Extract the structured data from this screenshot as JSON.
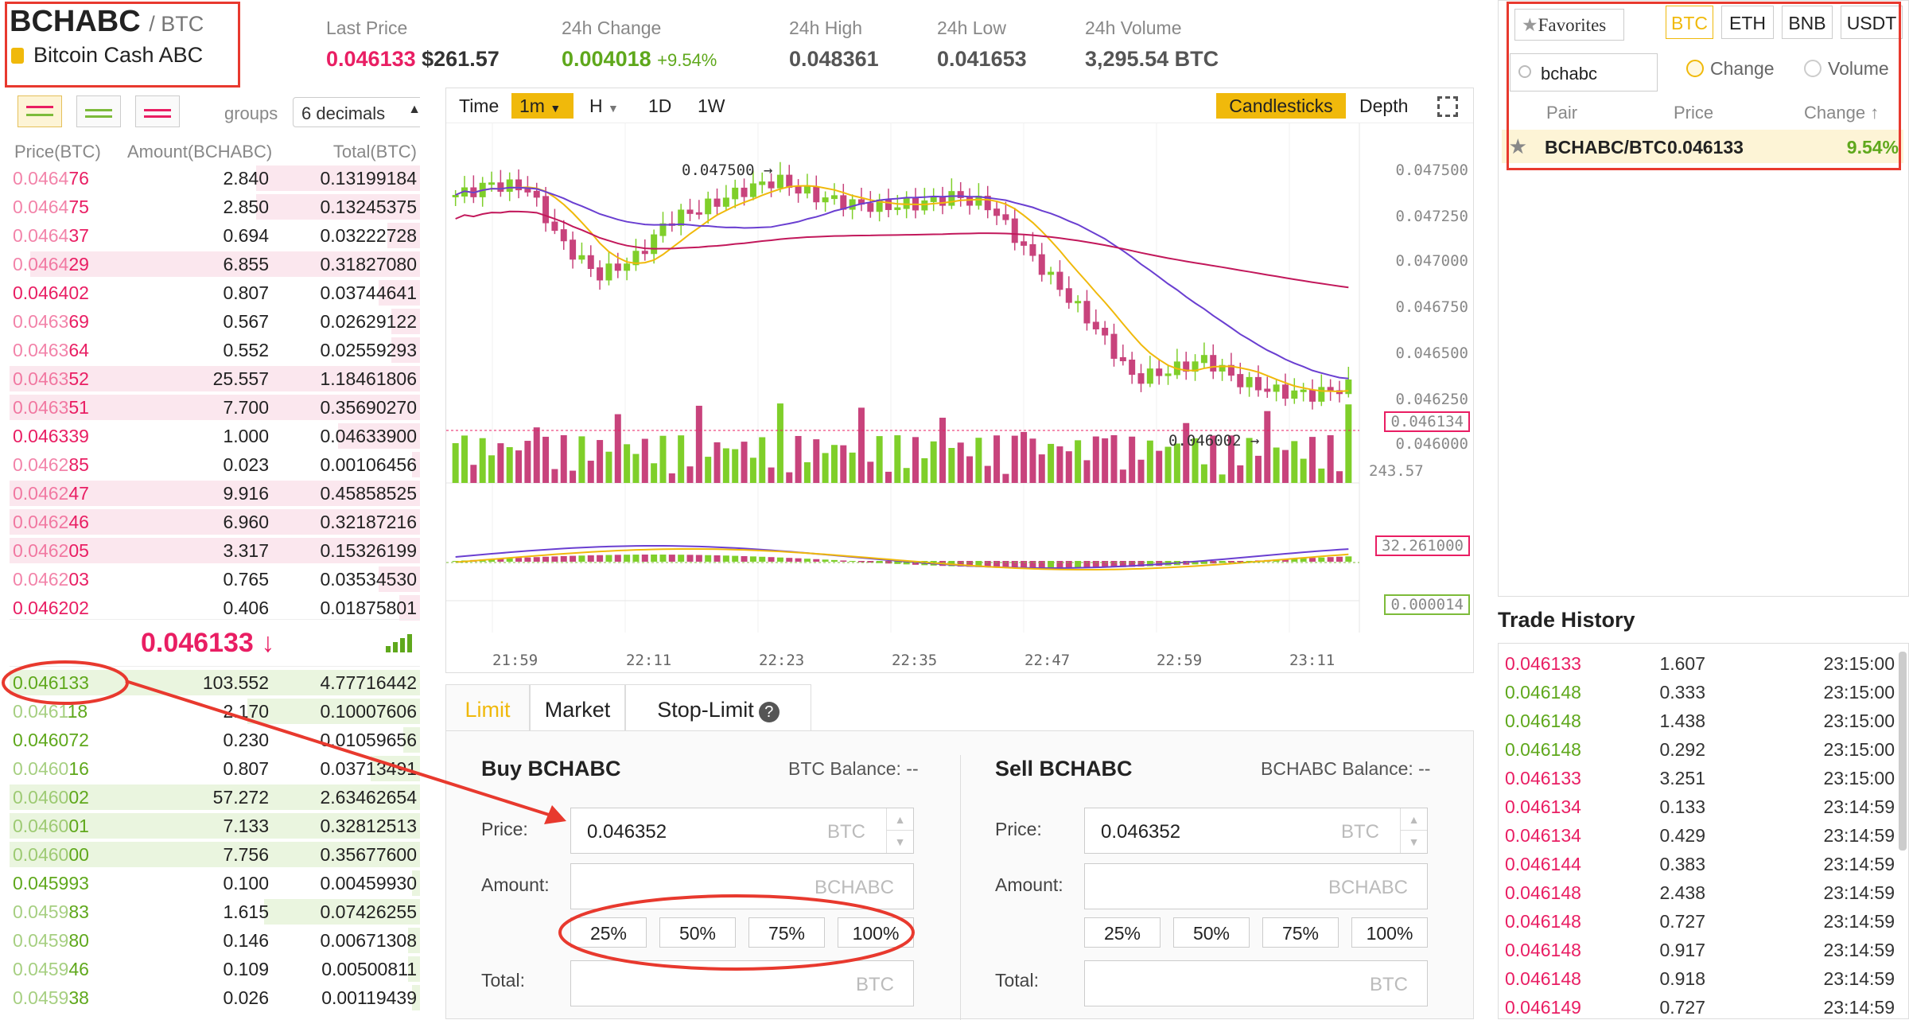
{
  "header": {
    "symbol": "BCHABC",
    "quote": "/ BTC",
    "name": "Bitcoin Cash ABC",
    "stats": [
      {
        "label": "Last Price",
        "value": "0.046133",
        "extra": "$261.57"
      },
      {
        "label": "24h Change",
        "value": "0.004018",
        "extra": "+9.54%"
      },
      {
        "label": "24h High",
        "value": "0.048361"
      },
      {
        "label": "24h Low",
        "value": "0.041653"
      },
      {
        "label": "24h Volume",
        "value": "3,295.54 BTC"
      }
    ]
  },
  "orderbook": {
    "groups_label": "groups",
    "groups_value": "6 decimals",
    "columns": [
      "Price(BTC)",
      "Amount(BCHABC)",
      "Total(BTC)"
    ],
    "asks": [
      {
        "p1": "0.0464",
        "p2": "76",
        "amount": "2.840",
        "total": "0.13199184",
        "depth": 0.4
      },
      {
        "p1": "0.0464",
        "p2": "75",
        "amount": "2.850",
        "total": "0.13245375",
        "depth": 0.4
      },
      {
        "p1": "0.0464",
        "p2": "37",
        "amount": "0.694",
        "total": "0.03222728",
        "depth": 0.08
      },
      {
        "p1": "0.0464",
        "p2": "29",
        "amount": "6.855",
        "total": "0.31827080",
        "depth": 0.95
      },
      {
        "p1": "0.046402",
        "p2": "",
        "amount": "0.807",
        "total": "0.03744641",
        "depth": 0.1
      },
      {
        "p1": "0.0463",
        "p2": "69",
        "amount": "0.567",
        "total": "0.02629122",
        "depth": 0.07
      },
      {
        "p1": "0.0463",
        "p2": "64",
        "amount": "0.552",
        "total": "0.02559293",
        "depth": 0.07
      },
      {
        "p1": "0.0463",
        "p2": "52",
        "amount": "25.557",
        "total": "1.18461806",
        "depth": 1.0
      },
      {
        "p1": "0.0463",
        "p2": "51",
        "amount": "7.700",
        "total": "0.35690270",
        "depth": 1.0
      },
      {
        "p1": "0.046339",
        "p2": "",
        "amount": "1.000",
        "total": "0.04633900",
        "depth": 0.2
      },
      {
        "p1": "0.0462",
        "p2": "85",
        "amount": "0.023",
        "total": "0.00106456",
        "depth": 0.02
      },
      {
        "p1": "0.0462",
        "p2": "47",
        "amount": "9.916",
        "total": "0.45858525",
        "depth": 1.0
      },
      {
        "p1": "0.0462",
        "p2": "46",
        "amount": "6.960",
        "total": "0.32187216",
        "depth": 1.0
      },
      {
        "p1": "0.0462",
        "p2": "05",
        "amount": "3.317",
        "total": "0.15326199",
        "depth": 1.0
      },
      {
        "p1": "0.0462",
        "p2": "03",
        "amount": "0.765",
        "total": "0.03534530",
        "depth": 0.1
      },
      {
        "p1": "0.046202",
        "p2": "",
        "amount": "0.406",
        "total": "0.01875801",
        "depth": 0.05
      }
    ],
    "mid_price": "0.046133 ↓",
    "bids": [
      {
        "p1": "0.046133",
        "p2": "",
        "amount": "103.552",
        "total": "4.77716442",
        "depth": 1.0
      },
      {
        "p1": "0.0461",
        "p2": "18",
        "amount": "2.170",
        "total": "0.10007606",
        "depth": 0.42
      },
      {
        "p1": "0.046072",
        "p2": "",
        "amount": "0.230",
        "total": "0.01059656",
        "depth": 0.04
      },
      {
        "p1": "0.0460",
        "p2": "16",
        "amount": "0.807",
        "total": "0.03713491",
        "depth": 0.12
      },
      {
        "p1": "0.0460",
        "p2": "02",
        "amount": "57.272",
        "total": "2.63462654",
        "depth": 1.0
      },
      {
        "p1": "0.0460",
        "p2": "01",
        "amount": "7.133",
        "total": "0.32812513",
        "depth": 1.0
      },
      {
        "p1": "0.0460",
        "p2": "00",
        "amount": "7.756",
        "total": "0.35677600",
        "depth": 1.0
      },
      {
        "p1": "0.045993",
        "p2": "",
        "amount": "0.100",
        "total": "0.00459930",
        "depth": 0.02
      },
      {
        "p1": "0.0459",
        "p2": "83",
        "amount": "1.615",
        "total": "0.07426255",
        "depth": 0.38
      },
      {
        "p1": "0.0459",
        "p2": "80",
        "amount": "0.146",
        "total": "0.00671308",
        "depth": 0.03
      },
      {
        "p1": "0.0459",
        "p2": "46",
        "amount": "0.109",
        "total": "0.00500811",
        "depth": 0.03
      },
      {
        "p1": "0.0459",
        "p2": "38",
        "amount": "0.026",
        "total": "0.00119439",
        "depth": 0.02
      }
    ]
  },
  "chart": {
    "toolbar": [
      "Time",
      "1m",
      "H",
      "1D",
      "1W"
    ],
    "views": [
      "Candlesticks",
      "Depth"
    ],
    "y_labels": [
      "0.047500",
      "0.047250",
      "0.047000",
      "0.046750",
      "0.046500",
      "0.046250",
      "0.046134",
      "0.046000"
    ],
    "volume_labels": [
      "243.57",
      "32.261000"
    ],
    "macd_label": "0.000014",
    "x_labels": [
      "21:59",
      "22:11",
      "22:23",
      "22:35",
      "22:47",
      "22:59",
      "23:11"
    ],
    "high_marker": "0.047500",
    "low_marker": "0.046002"
  },
  "trade": {
    "tabs": [
      "Limit",
      "Market",
      "Stop-Limit"
    ],
    "help": "?",
    "buy": {
      "title": "Buy BCHABC",
      "balance": "BTC Balance: --",
      "price": "0.046352",
      "price_unit": "BTC",
      "amount_unit": "BCHABC",
      "total_unit": "BTC"
    },
    "sell": {
      "title": "Sell BCHABC",
      "balance": "BCHABC Balance: --",
      "price": "0.046352",
      "price_unit": "BTC",
      "amount_unit": "BCHABC",
      "total_unit": "BTC"
    },
    "labels": {
      "price": "Price:",
      "amount": "Amount:",
      "total": "Total:"
    },
    "percents": [
      "25%",
      "50%",
      "75%",
      "100%"
    ]
  },
  "markets": {
    "favorites": "Favorites",
    "tabs": [
      "BTC",
      "ETH",
      "BNB",
      "USDT"
    ],
    "search": "bchabc",
    "radio_change": "Change",
    "radio_volume": "Volume",
    "columns": [
      "Pair",
      "Price",
      "Change"
    ],
    "row": {
      "pair": "BCHABC/BTC",
      "price": "0.046133",
      "change": "9.54%"
    }
  },
  "trade_history": {
    "title": "Trade History",
    "rows": [
      {
        "price": "0.046133",
        "amount": "1.607",
        "time": "23:15:00",
        "side": "sell"
      },
      {
        "price": "0.046148",
        "amount": "0.333",
        "time": "23:15:00",
        "side": "buy"
      },
      {
        "price": "0.046148",
        "amount": "1.438",
        "time": "23:15:00",
        "side": "buy"
      },
      {
        "price": "0.046148",
        "amount": "0.292",
        "time": "23:15:00",
        "side": "buy"
      },
      {
        "price": "0.046133",
        "amount": "3.251",
        "time": "23:15:00",
        "side": "sell"
      },
      {
        "price": "0.046134",
        "amount": "0.133",
        "time": "23:14:59",
        "side": "sell"
      },
      {
        "price": "0.046134",
        "amount": "0.429",
        "time": "23:14:59",
        "side": "sell"
      },
      {
        "price": "0.046144",
        "amount": "0.383",
        "time": "23:14:59",
        "side": "sell"
      },
      {
        "price": "0.046148",
        "amount": "2.438",
        "time": "23:14:59",
        "side": "sell"
      },
      {
        "price": "0.046148",
        "amount": "0.727",
        "time": "23:14:59",
        "side": "sell"
      },
      {
        "price": "0.046148",
        "amount": "0.917",
        "time": "23:14:59",
        "side": "sell"
      },
      {
        "price": "0.046148",
        "amount": "0.918",
        "time": "23:14:59",
        "side": "sell"
      },
      {
        "price": "0.046149",
        "amount": "0.727",
        "time": "23:14:59",
        "side": "sell"
      }
    ]
  },
  "colors": {
    "sell": "#e91e63",
    "buy": "#5fa81c",
    "accent": "#f0b90b",
    "annotation": "#e8392e"
  }
}
